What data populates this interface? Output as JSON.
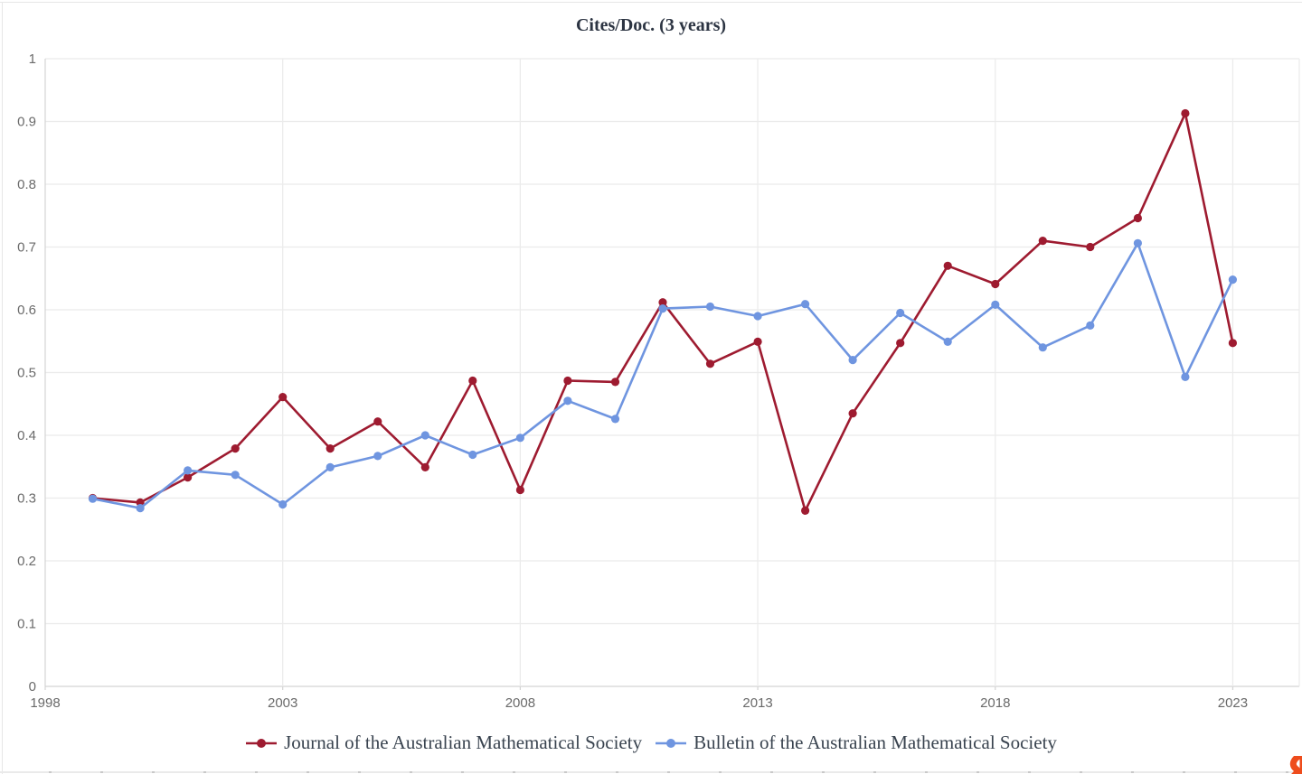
{
  "chart_data": {
    "type": "line",
    "title": "Cites/Doc. (3 years)",
    "x": [
      1999,
      2000,
      2001,
      2002,
      2003,
      2004,
      2005,
      2006,
      2007,
      2008,
      2009,
      2010,
      2011,
      2012,
      2013,
      2014,
      2015,
      2016,
      2017,
      2018,
      2019,
      2020,
      2021,
      2022,
      2023
    ],
    "series": [
      {
        "name": "Journal of the Australian Mathematical Society",
        "color": "#9e1b30",
        "values": [
          0.3,
          0.293,
          0.333,
          0.379,
          0.461,
          0.379,
          0.422,
          0.349,
          0.487,
          0.313,
          0.487,
          0.485,
          0.612,
          0.514,
          0.549,
          0.28,
          0.435,
          0.547,
          0.67,
          0.641,
          0.71,
          0.7,
          0.746,
          0.913,
          0.547
        ]
      },
      {
        "name": "Bulletin of the Australian Mathematical Society",
        "color": "#6f95e0",
        "values": [
          0.299,
          0.284,
          0.344,
          0.337,
          0.29,
          0.349,
          0.367,
          0.4,
          0.369,
          0.396,
          0.455,
          0.426,
          0.602,
          0.605,
          0.59,
          0.609,
          0.52,
          0.595,
          0.549,
          0.608,
          0.54,
          0.575,
          0.706,
          0.493,
          0.648
        ]
      }
    ],
    "xticks": [
      1998,
      2003,
      2008,
      2013,
      2018,
      2023
    ],
    "yticks": [
      0,
      0.1,
      0.2,
      0.3,
      0.4,
      0.5,
      0.6,
      0.7,
      0.8,
      0.9,
      1
    ],
    "ytick_labels": [
      "0",
      "0.1",
      "0.2",
      "0.3",
      "0.4",
      "0.5",
      "0.6",
      "0.7",
      "0.8",
      "0.9",
      "1"
    ],
    "xlim": [
      1998,
      2024.4
    ],
    "ylim": [
      0,
      1
    ],
    "grid": true,
    "legend_position": "bottom",
    "marker": "circle"
  },
  "colors": {
    "gridline": "#ebebeb",
    "axis_line": "#d4d4d4",
    "tick_label": "#6a6a6a",
    "title_text": "#2c3442",
    "legend_text": "#39434f",
    "logo_orange": "#ee4c1c"
  }
}
